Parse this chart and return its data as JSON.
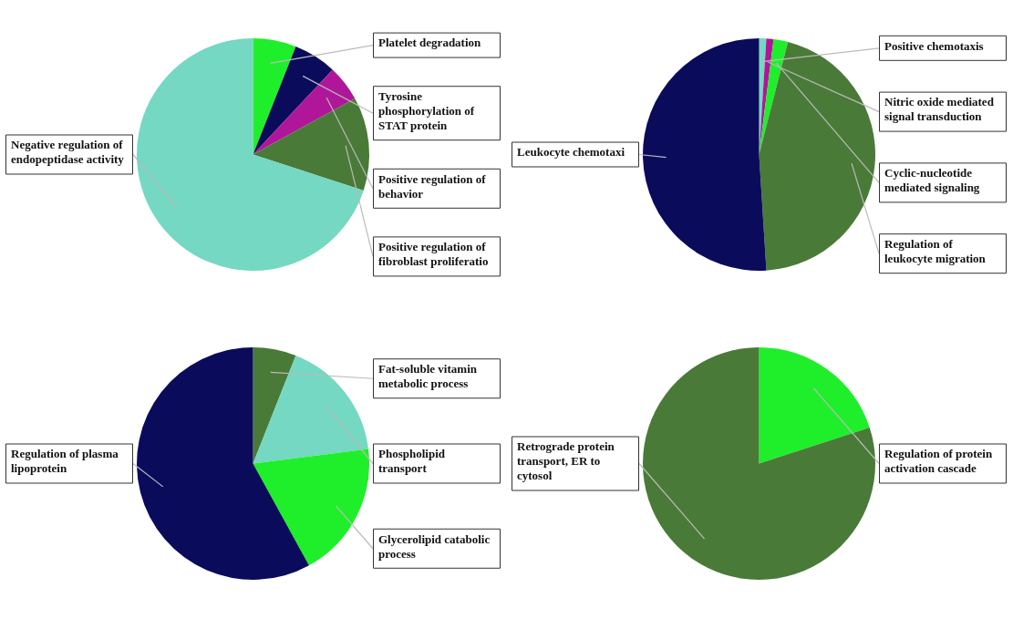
{
  "chart_data": [
    {
      "type": "pie",
      "categories": [
        "Platelet degradation",
        "Tyrosine phosphorylation of STAT protein",
        "Positive regulation of behavior",
        "Positive regulation of fibroblast proliferatio",
        "Negative regulation of endopeptidase activity"
      ],
      "values": [
        6,
        6,
        5,
        13,
        70
      ],
      "colors": [
        "#1fef2a",
        "#0b0b5c",
        "#b0169a",
        "#4a7a38",
        "#74d8c2"
      ]
    },
    {
      "type": "pie",
      "categories": [
        "Positive chemotaxis",
        "Nitric oxide mediated signal transduction",
        "Cyclic-nucleotide mediated signaling",
        "Regulation of leukocyte migration",
        "Leukocyte chemotaxi"
      ],
      "values": [
        1,
        1,
        2,
        45,
        51
      ],
      "colors": [
        "#74d8c2",
        "#b0169a",
        "#1fef2a",
        "#4a7a38",
        "#0b0b5c"
      ]
    },
    {
      "type": "pie",
      "categories": [
        "Fat-soluble vitamin metabolic process",
        "Phospholipid transport",
        "Glycerolipid catabolic process",
        "Regulation of plasma lipoprotein"
      ],
      "values": [
        6,
        17,
        19,
        58
      ],
      "colors": [
        "#4a7a38",
        "#74d8c2",
        "#1fef2a",
        "#0b0b5c"
      ]
    },
    {
      "type": "pie",
      "categories": [
        "Regulation of protein activation cascade",
        "Retrograde protein transport, ER to cytosol"
      ],
      "values": [
        20,
        80
      ],
      "colors": [
        "#1fef2a",
        "#4a7a38"
      ]
    }
  ]
}
